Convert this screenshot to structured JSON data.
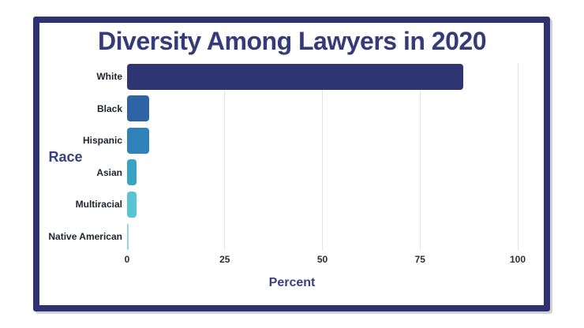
{
  "page": {
    "background": "#ffffff",
    "frame_border_color": "#2e3272"
  },
  "chart_data": {
    "type": "bar",
    "orientation": "horizontal",
    "title": "Diversity Among Lawyers in 2020",
    "xlabel": "Percent",
    "ylabel": "Race",
    "categories": [
      "White",
      "Black",
      "Hispanic",
      "Asian",
      "Multiracial",
      "Native American"
    ],
    "values": [
      86,
      5.6,
      5.6,
      2.4,
      2.4,
      0.4
    ],
    "bar_colors": [
      "#2f3573",
      "#2e63a5",
      "#2e82b8",
      "#3aa2c2",
      "#57c4d4",
      "#8edade"
    ],
    "xlim": [
      0,
      100
    ],
    "xticks": [
      0,
      25,
      50,
      75,
      100
    ],
    "grid": "vertical-gridlines-at-ticks-except-zero",
    "legend": "none"
  },
  "colors": {
    "title_text": "#343b78",
    "axis_label_text": "#3a4080",
    "category_text": "#20242f",
    "tick_text": "#2d2d2d",
    "gridline": "#e3e3e3"
  }
}
